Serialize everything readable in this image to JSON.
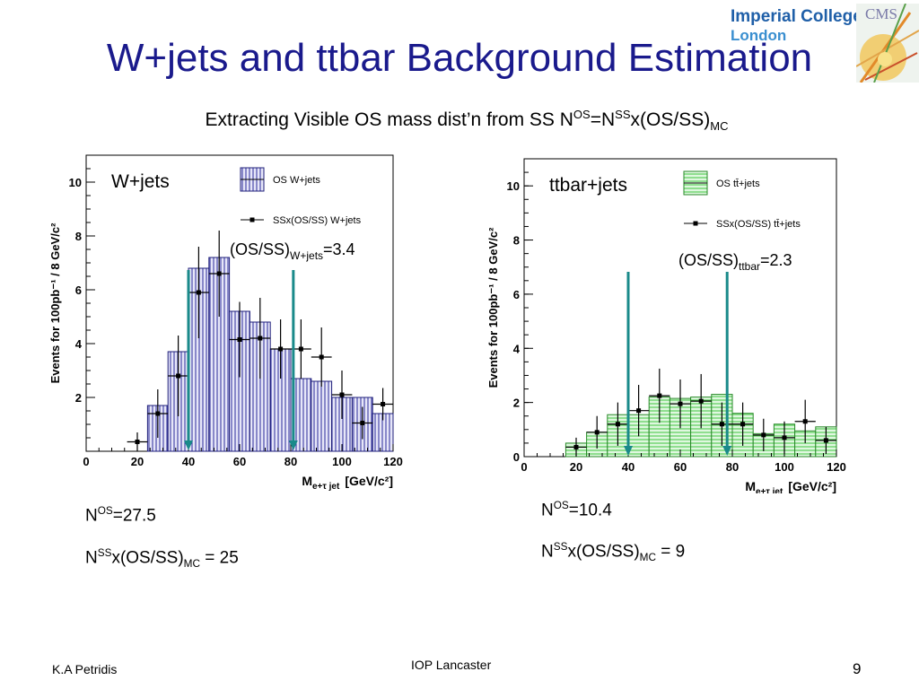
{
  "slide": {
    "title": "W+jets and ttbar Background Estimation",
    "subtitle_main": "Extracting Visible OS mass dist’n from SS N",
    "subtitle_sup1": "OS",
    "subtitle_eq": "=N",
    "subtitle_sup2": "SS",
    "subtitle_tail": "x(OS/SS)",
    "subtitle_sub": "MC"
  },
  "logo": {
    "line1": "Imperial College",
    "line2": "London",
    "cms_text": "CMS"
  },
  "colors": {
    "title": "#1a1a8c",
    "wjets_fill": "#2b2b9a",
    "ttbar_fill": "#3fc43f",
    "arrow": "#1a8a8a"
  },
  "left_chart": {
    "label": "W+jets",
    "ratio_main": "(OS/SS)",
    "ratio_sub": "W+jets",
    "ratio_val": "=3.4",
    "nos_pre": "N",
    "nos_sup": "OS",
    "nos_val": "=27.5",
    "nss_pre": "N",
    "nss_sup": "SS",
    "nss_mid": "x(OS/SS)",
    "nss_sub": "MC",
    "nss_val": " = 25"
  },
  "right_chart": {
    "label": "ttbar+jets",
    "ratio_main": "(OS/SS)",
    "ratio_sub": "ttbar",
    "ratio_val": "=2.3",
    "nos_pre": "N",
    "nos_sup": "OS",
    "nos_val": "=10.4",
    "nss_pre": "N",
    "nss_sup": "SS",
    "nss_mid": "x(OS/SS)",
    "nss_sub": "MC",
    "nss_val": " = 9"
  },
  "chart_data": [
    {
      "type": "bar",
      "title": "W+jets",
      "xlabel": "M",
      "xlabel_sub": "e+τ jet",
      "xlabel_unit": "[GeV/c²]",
      "ylabel": "Events for 100pb⁻¹ / 8 GeV/c²",
      "xlim": [
        0,
        120
      ],
      "ylim": [
        0,
        11
      ],
      "x_ticks": [
        0,
        20,
        40,
        60,
        80,
        100,
        120
      ],
      "y_ticks": [
        2,
        4,
        6,
        8,
        10
      ],
      "bin_width": 8,
      "legend_position": "top-right",
      "series": [
        {
          "name": "OS W+jets",
          "style": "histogram",
          "bin_edges": [
            16,
            24,
            32,
            40,
            48,
            56,
            64,
            72,
            80,
            88,
            96,
            104,
            112,
            120
          ],
          "values": [
            0.0,
            1.7,
            3.7,
            6.8,
            7.2,
            5.2,
            4.8,
            3.8,
            2.7,
            2.6,
            2.0,
            2.0,
            1.4
          ]
        },
        {
          "name": "SSx(OS/SS) W+jets",
          "style": "points",
          "x": [
            20,
            28,
            36,
            44,
            52,
            60,
            68,
            76,
            84,
            92,
            100,
            108,
            116
          ],
          "values": [
            0.35,
            1.4,
            2.8,
            5.9,
            6.6,
            4.15,
            4.2,
            3.8,
            3.8,
            3.5,
            2.1,
            1.05,
            1.75
          ],
          "errors": [
            0.35,
            0.9,
            1.5,
            1.7,
            1.6,
            1.4,
            1.5,
            1.1,
            1.1,
            1.1,
            0.9,
            0.6,
            0.6
          ]
        }
      ],
      "markers": [
        40,
        81
      ]
    },
    {
      "type": "bar",
      "title": "ttbar+jets",
      "xlabel": "M",
      "xlabel_sub": "e+τ jet",
      "xlabel_unit": "[GeV/c²]",
      "ylabel": "Events for 100pb⁻¹ / 8 GeV/c²",
      "xlim": [
        0,
        120
      ],
      "ylim": [
        0,
        11
      ],
      "x_ticks": [
        0,
        20,
        40,
        60,
        80,
        100,
        120
      ],
      "y_ticks": [
        0,
        2,
        4,
        6,
        8,
        10
      ],
      "bin_width": 8,
      "legend_position": "top-right",
      "series": [
        {
          "name": "OS tt̄+jets",
          "style": "histogram",
          "bin_edges": [
            16,
            24,
            32,
            40,
            48,
            56,
            64,
            72,
            80,
            88,
            96,
            104,
            112,
            120
          ],
          "values": [
            0.5,
            0.9,
            1.55,
            1.55,
            2.2,
            2.15,
            2.2,
            2.3,
            1.6,
            0.85,
            1.2,
            0.95,
            1.1
          ]
        },
        {
          "name": "SSx(OS/SS) tt̄+jets",
          "style": "points",
          "x": [
            20,
            28,
            36,
            44,
            52,
            60,
            68,
            76,
            84,
            92,
            100,
            108,
            116
          ],
          "values": [
            0.35,
            0.9,
            1.2,
            1.7,
            2.25,
            1.95,
            2.05,
            1.2,
            1.2,
            0.8,
            0.7,
            1.3,
            0.6
          ],
          "errors": [
            0.35,
            0.6,
            0.8,
            0.95,
            1.0,
            0.9,
            1.0,
            0.8,
            0.8,
            0.6,
            0.6,
            0.8,
            0.5
          ]
        }
      ],
      "markers": [
        40,
        78
      ]
    }
  ],
  "footer": {
    "author": "K.A Petridis",
    "venue": "IOP Lancaster",
    "page": "9"
  }
}
